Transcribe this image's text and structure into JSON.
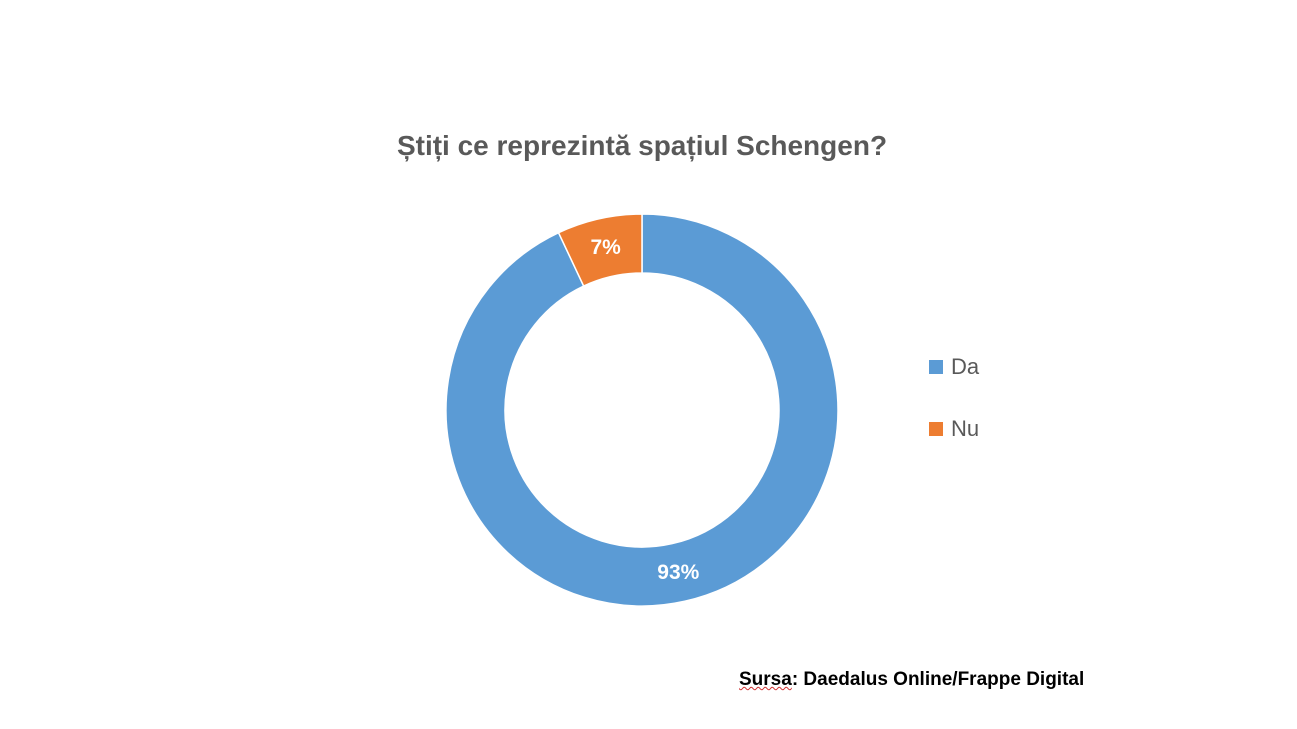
{
  "chart_data": {
    "type": "pie",
    "subtype": "doughnut",
    "title": "Știți ce reprezintă spațiul Schengen?",
    "categories": [
      "Da",
      "Nu"
    ],
    "values": [
      93,
      7
    ],
    "labels": [
      "93%",
      "7%"
    ],
    "colors": [
      "#5B9BD5",
      "#ED7D31"
    ],
    "legend_position": "right"
  },
  "legend": {
    "items": [
      {
        "label": "Da",
        "color": "#5B9BD5"
      },
      {
        "label": "Nu",
        "color": "#ED7D31"
      }
    ]
  },
  "source": {
    "prefix": "Sursa",
    "text": ": Daedalus Online/Frappe Digital"
  }
}
